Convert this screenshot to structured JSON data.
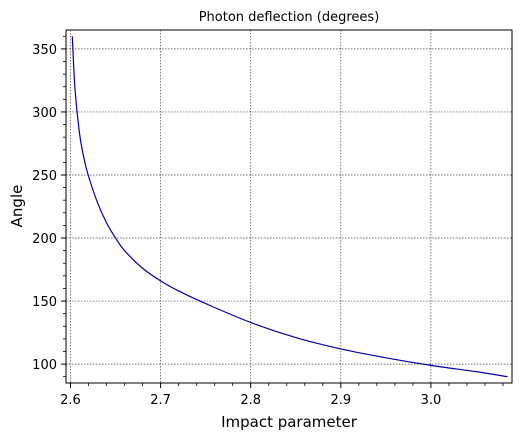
{
  "chart_data": {
    "type": "line",
    "title": "Photon deflection (degrees)",
    "xlabel": "Impact parameter",
    "ylabel": "Angle",
    "xlim": [
      2.595,
      3.09
    ],
    "ylim": [
      85,
      365
    ],
    "xticks": [
      2.6,
      2.7,
      2.8,
      2.9,
      3.0
    ],
    "xtick_labels": [
      "2.6",
      "2.7",
      "2.8",
      "2.9",
      "3.0"
    ],
    "yticks": [
      100,
      150,
      200,
      250,
      300,
      350
    ],
    "ytick_labels": [
      "100",
      "150",
      "200",
      "250",
      "300",
      "350"
    ],
    "grid": true,
    "line_color": "#0000aa",
    "series": [
      {
        "x": [
          2.602,
          2.605,
          2.61,
          2.615,
          2.62,
          2.63,
          2.64,
          2.65,
          2.66,
          2.68,
          2.7,
          2.72,
          2.75,
          2.8,
          2.85,
          2.9,
          2.95,
          3.0,
          3.05,
          3.085
        ],
        "values": [
          360,
          318,
          283,
          263,
          249,
          228,
          212,
          200,
          190,
          176,
          166,
          158,
          148,
          133,
          121,
          112,
          105,
          99,
          94,
          90
        ]
      }
    ]
  }
}
